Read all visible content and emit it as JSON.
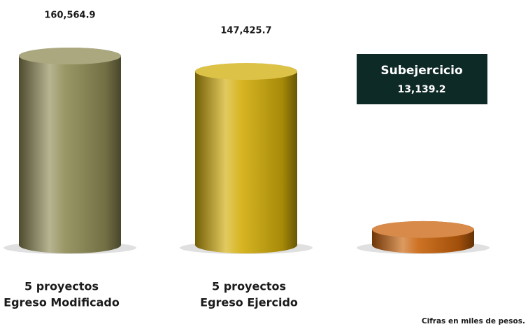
{
  "chart_data": {
    "type": "cylinder",
    "categories": [
      [
        "5 proyectos",
        "Egreso Modificado"
      ],
      [
        "5 proyectos",
        "Egreso Ejercido"
      ],
      null
    ],
    "values": [
      160564.9,
      147425.7,
      13139.2
    ],
    "value_labels": [
      "160,564.9",
      "147,425.7",
      "13,139.2"
    ],
    "colors": [
      "#8f8b55",
      "#d2ad0b",
      "#c9630c"
    ],
    "callout": "Subejercicio",
    "note": "Cifras en miles de pesos."
  }
}
